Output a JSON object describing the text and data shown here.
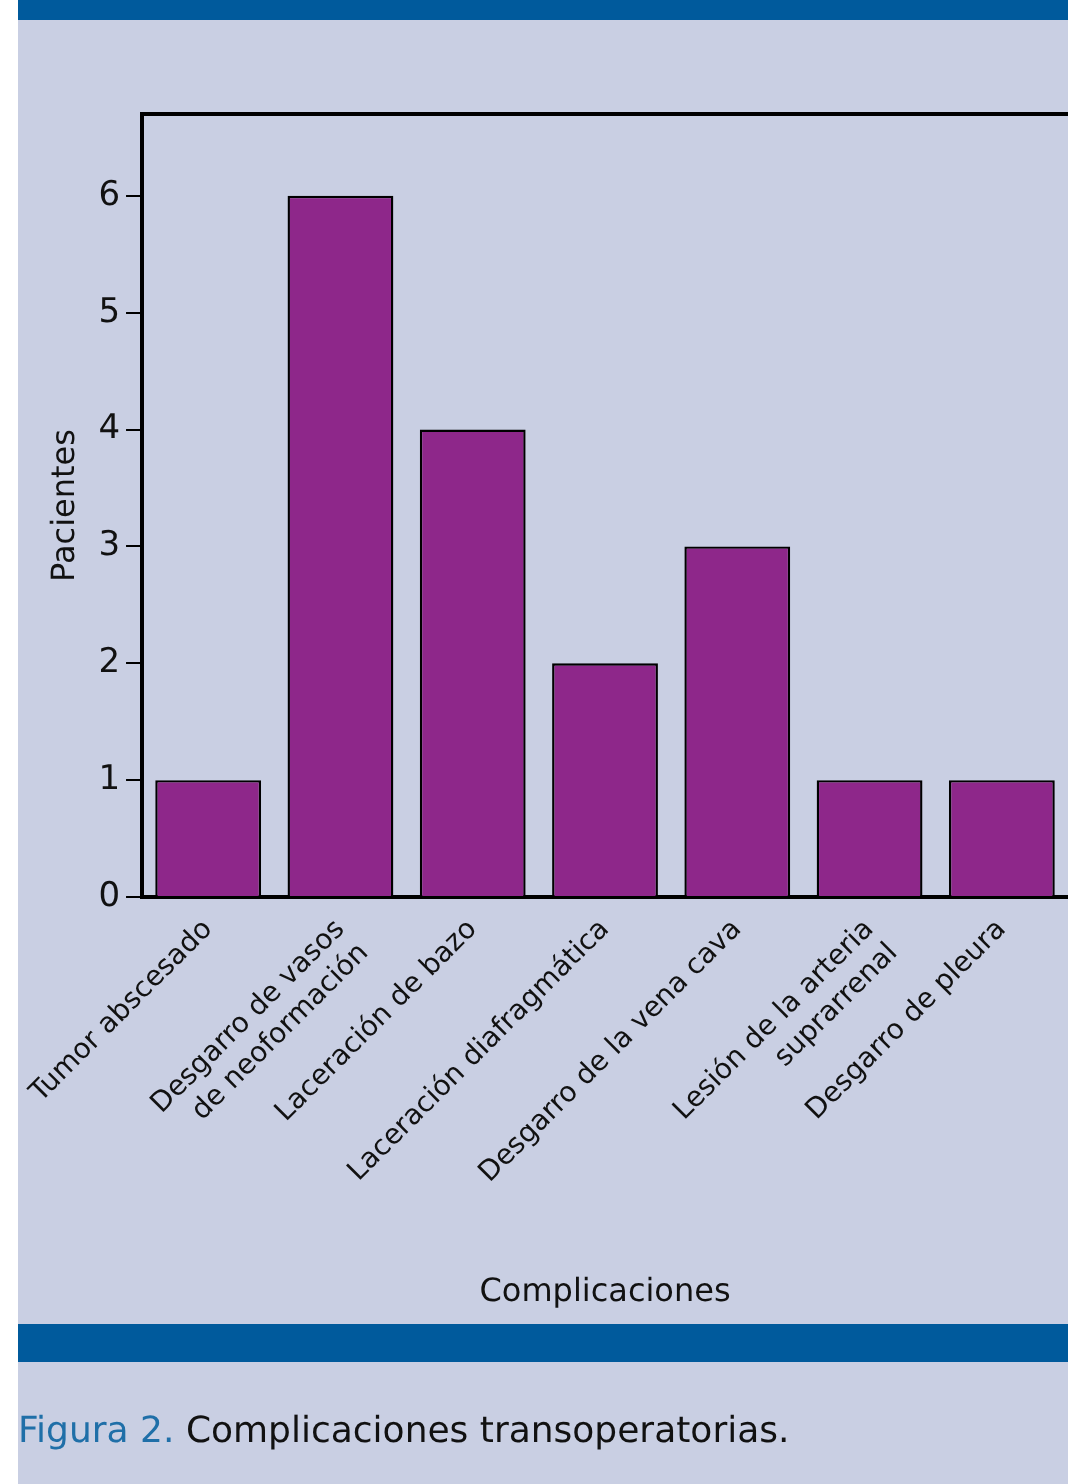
{
  "chart_data": {
    "type": "bar",
    "categories": [
      "Tumor abscesado",
      "Desgarro de vasos\nde neoformación",
      "Laceración de bazo",
      "Laceración diafragmática",
      "Desgarro de la vena cava",
      "Lesión de la arteria\nsuprarrenal",
      "Desgarro de pleura"
    ],
    "values": [
      1,
      6,
      4,
      2,
      3,
      1,
      1
    ],
    "color": "#8e278a",
    "xlabel": "Complicaciones",
    "ylabel": "Pacientes",
    "ylim": [
      0,
      6.7
    ],
    "yticks": [
      0,
      1,
      2,
      3,
      4,
      5,
      6
    ],
    "grid": false,
    "legend": false,
    "annotations": [
      "Figura 2.",
      "Complicaciones transoperatorias."
    ]
  }
}
